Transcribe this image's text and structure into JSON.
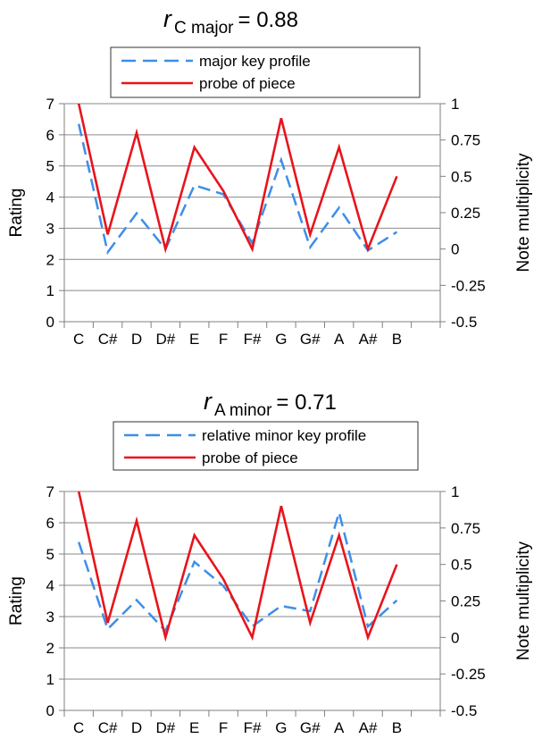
{
  "chart_data": [
    {
      "type": "line",
      "title": {
        "symbol": "r",
        "subscript": "C major",
        "equals": "= 0.88"
      },
      "categories": [
        "C",
        "C#",
        "D",
        "D#",
        "E",
        "F",
        "F#",
        "G",
        "G#",
        "A",
        "A#",
        "B"
      ],
      "ylabel": "Rating",
      "y2label": "Note multiplicity",
      "ylim": [
        0,
        7
      ],
      "y2lim": [
        -0.5,
        1
      ],
      "y_ticks": [
        "0",
        "1",
        "2",
        "3",
        "4",
        "5",
        "6",
        "7"
      ],
      "y2_ticks": [
        "-0.5",
        "-0.25",
        "0",
        "0.25",
        "0.5",
        "0.75",
        "1"
      ],
      "grid": true,
      "legend_position": "top",
      "series": [
        {
          "name": "major key profile",
          "axis": "left",
          "color": "#3d8ee8",
          "dashed": true,
          "values": [
            6.35,
            2.23,
            3.48,
            2.33,
            4.38,
            4.09,
            2.52,
            5.19,
            2.39,
            3.66,
            2.29,
            2.88
          ]
        },
        {
          "name": "probe of piece",
          "axis": "right",
          "color": "#e8141c",
          "dashed": false,
          "values": [
            1,
            0.1,
            0.8,
            0,
            0.7,
            0.4,
            0,
            0.9,
            0.1,
            0.7,
            0,
            0.5
          ]
        }
      ]
    },
    {
      "type": "line",
      "title": {
        "symbol": "r",
        "subscript": "A minor",
        "equals": "= 0.71"
      },
      "categories": [
        "C",
        "C#",
        "D",
        "D#",
        "E",
        "F",
        "F#",
        "G",
        "G#",
        "A",
        "A#",
        "B"
      ],
      "ylabel": "Rating",
      "y2label": "Note multiplicity",
      "ylim": [
        0,
        7
      ],
      "y2lim": [
        -0.5,
        1
      ],
      "y_ticks": [
        "0",
        "1",
        "2",
        "3",
        "4",
        "5",
        "6",
        "7"
      ],
      "y2_ticks": [
        "-0.5",
        "-0.25",
        "0",
        "0.25",
        "0.5",
        "0.75",
        "1"
      ],
      "grid": true,
      "legend_position": "top",
      "series": [
        {
          "name": "relative minor key profile",
          "axis": "left",
          "color": "#3d8ee8",
          "dashed": true,
          "values": [
            5.38,
            2.6,
            3.53,
            2.54,
            4.75,
            3.98,
            2.69,
            3.34,
            3.17,
            6.33,
            2.68,
            3.52
          ]
        },
        {
          "name": "probe of piece",
          "axis": "right",
          "color": "#e8141c",
          "dashed": false,
          "values": [
            1,
            0.1,
            0.8,
            0,
            0.7,
            0.4,
            0,
            0.9,
            0.1,
            0.7,
            0,
            0.5
          ]
        }
      ]
    }
  ]
}
